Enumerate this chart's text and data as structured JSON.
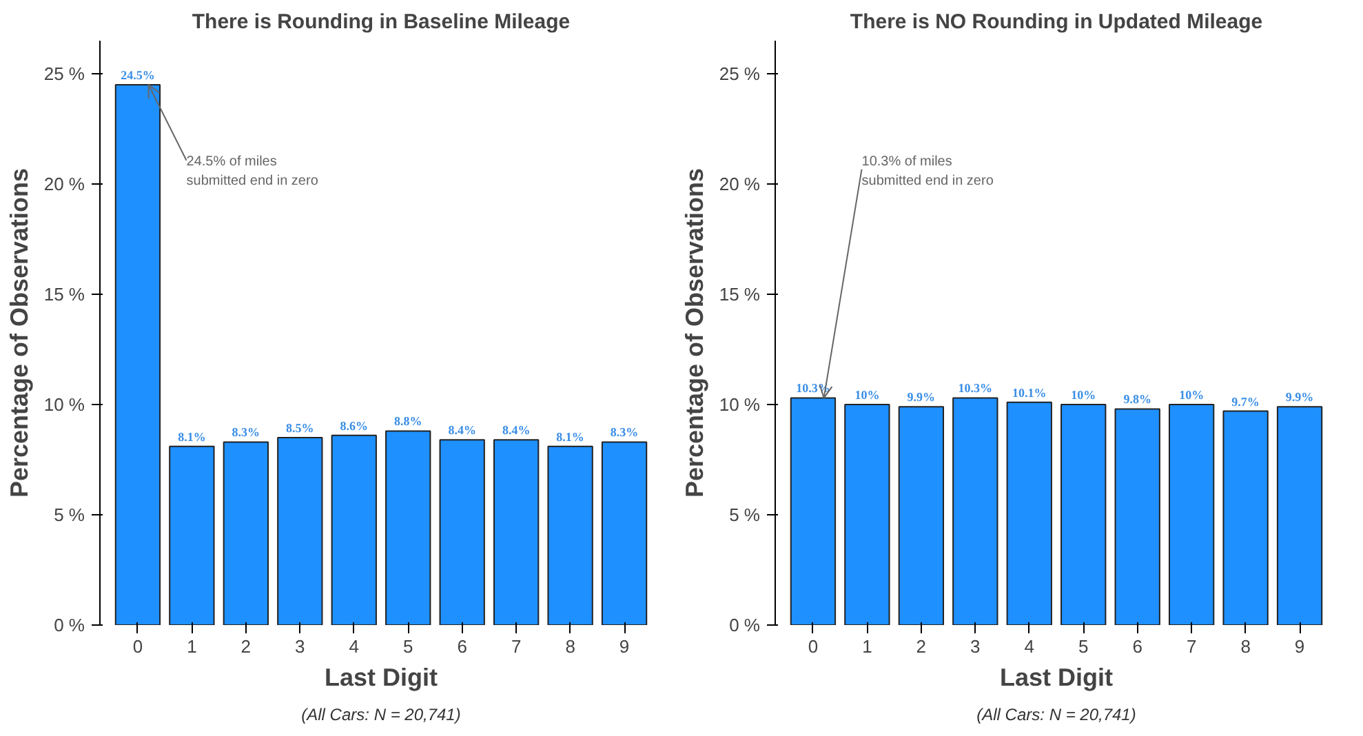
{
  "chart_data": [
    {
      "type": "bar",
      "title": "There is Rounding in Baseline Mileage",
      "xlabel": "Last Digit",
      "ylabel": "Percentage of Observations",
      "categories": [
        "0",
        "1",
        "2",
        "3",
        "4",
        "5",
        "6",
        "7",
        "8",
        "9"
      ],
      "values": [
        24.5,
        8.1,
        8.3,
        8.5,
        8.6,
        8.8,
        8.4,
        8.4,
        8.1,
        8.3
      ],
      "value_labels": [
        "24.5%",
        "8.1%",
        "8.3%",
        "8.5%",
        "8.6%",
        "8.8%",
        "8.4%",
        "8.4%",
        "8.1%",
        "8.3%"
      ],
      "color": "#1e90ff",
      "ylim": [
        0,
        26.5
      ],
      "yticks": [
        {
          "value": 0,
          "label": "0 %"
        },
        {
          "value": 5,
          "label": "5 %"
        },
        {
          "value": 10,
          "label": "10 %"
        },
        {
          "value": 15,
          "label": "15 %"
        },
        {
          "value": 20,
          "label": "20 %"
        },
        {
          "value": 25,
          "label": "25 %"
        }
      ],
      "annotations": [
        {
          "text": "24.5% of miles\nsubmitted end in zero",
          "x": "0",
          "y": 24.5
        },
        "(All Cars: N = 20,741)"
      ]
    },
    {
      "type": "bar",
      "title": "There is NO Rounding in Updated Mileage",
      "xlabel": "Last Digit",
      "ylabel": "Percentage of Observations",
      "categories": [
        "0",
        "1",
        "2",
        "3",
        "4",
        "5",
        "6",
        "7",
        "8",
        "9"
      ],
      "values": [
        10.3,
        10,
        9.9,
        10.3,
        10.1,
        10,
        9.8,
        10,
        9.7,
        9.9
      ],
      "value_labels": [
        "10.3%",
        "10%",
        "9.9%",
        "10.3%",
        "10.1%",
        "10%",
        "9.8%",
        "10%",
        "9.7%",
        "9.9%"
      ],
      "color": "#1e90ff",
      "ylim": [
        0,
        26.5
      ],
      "yticks": [
        {
          "value": 0,
          "label": "0 %"
        },
        {
          "value": 5,
          "label": "5 %"
        },
        {
          "value": 10,
          "label": "10 %"
        },
        {
          "value": 15,
          "label": "15 %"
        },
        {
          "value": 20,
          "label": "20 %"
        },
        {
          "value": 25,
          "label": "25 %"
        }
      ],
      "annotations": [
        {
          "text": "10.3% of miles\nsubmitted end in zero",
          "x": "0",
          "y": 10.3
        },
        "(All Cars: N = 20,741)"
      ]
    }
  ]
}
